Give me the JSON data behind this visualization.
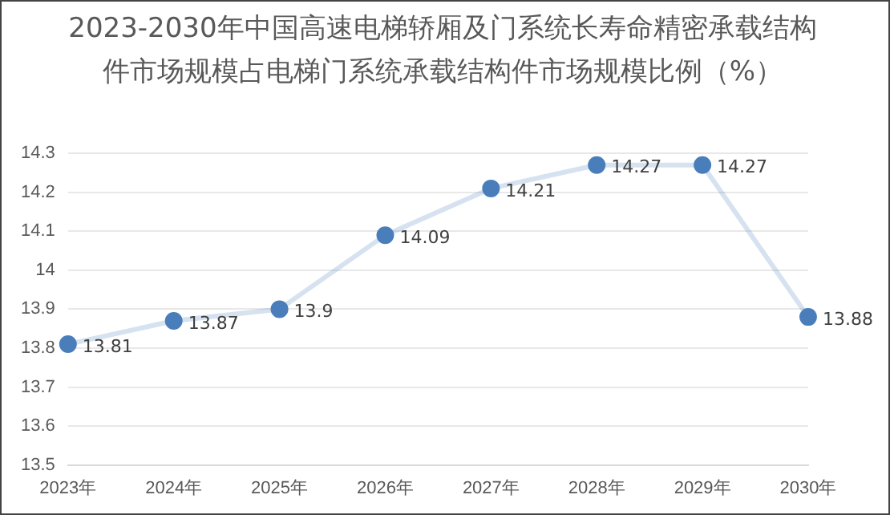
{
  "chart_data": {
    "type": "line",
    "title": "2023-2030年中国高速电梯轿厢及门系统长寿命精密承载结构件市场规模占电梯门系统承载结构件市场规模比例（%）",
    "categories": [
      "2023年",
      "2024年",
      "2025年",
      "2026年",
      "2027年",
      "2028年",
      "2029年",
      "2030年"
    ],
    "series": [
      {
        "color": "#4a7ebb",
        "values": [
          13.81,
          13.87,
          13.9,
          14.09,
          14.21,
          14.27,
          14.27,
          13.88
        ]
      }
    ],
    "ylim": [
      13.5,
      14.3
    ],
    "yticks": [
      13.5,
      13.6,
      13.7,
      13.8,
      13.9,
      14,
      14.1,
      14.2,
      14.3
    ],
    "grid": "y",
    "marker": "circle",
    "data_labels": true,
    "legend": false
  }
}
